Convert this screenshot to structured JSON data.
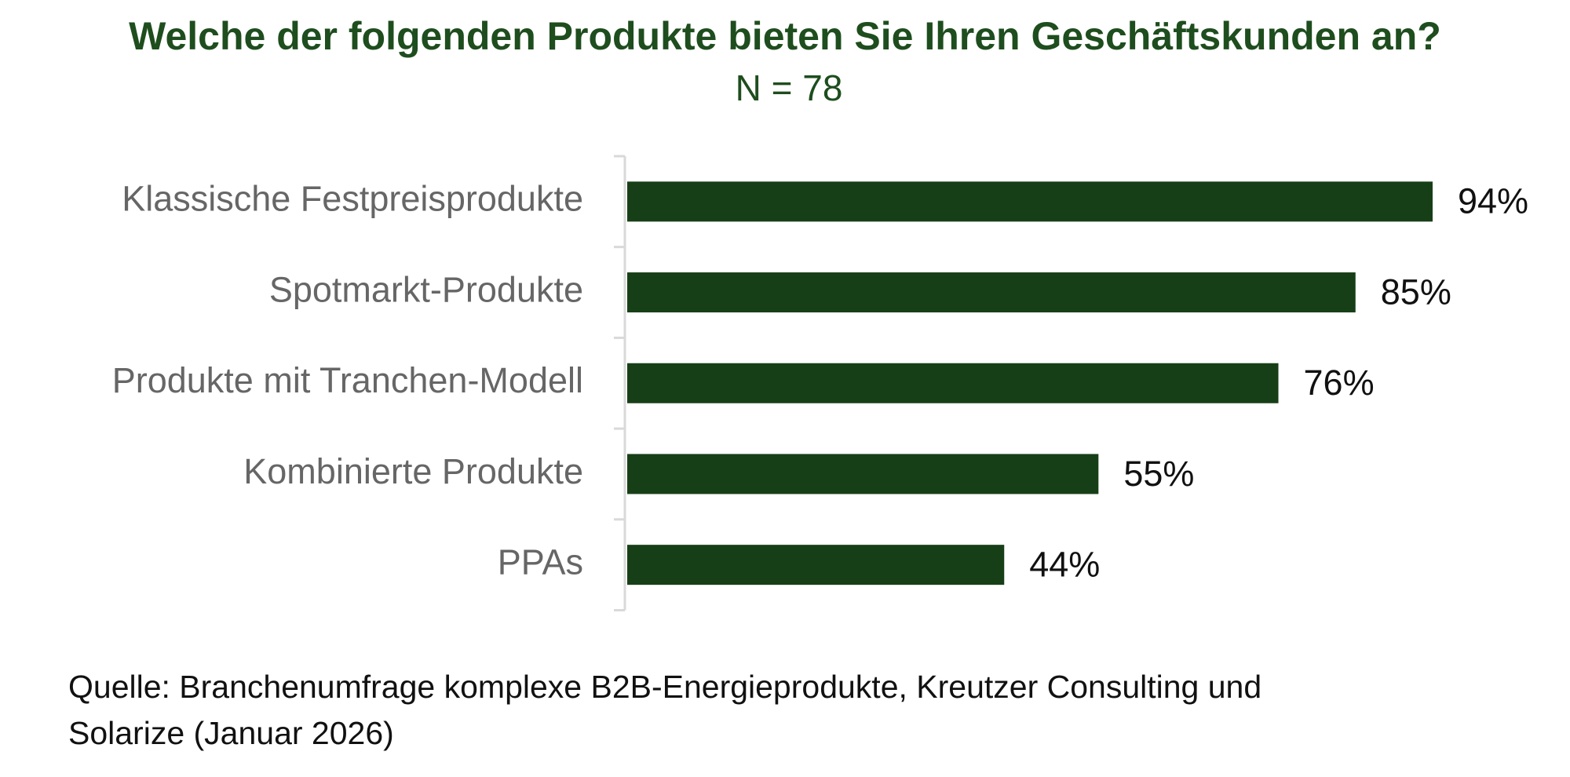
{
  "chart_data": {
    "type": "hbar",
    "title": "Welche der folgenden Produkte bieten Sie Ihren Geschäftskunden an?",
    "subtitle": "N = 78",
    "categories": [
      "Klassische Festpreisprodukte",
      "Spotmarkt-Produkte",
      "Produkte mit Tranchen-Modell",
      "Kombinierte Produkte",
      "PPAs"
    ],
    "values": [
      94,
      85,
      76,
      55,
      44
    ],
    "value_labels": [
      "94%",
      "85%",
      "76%",
      "55%",
      "44%"
    ],
    "color": "#173f17",
    "source": [
      "Quelle: Branchenumfrage komplexe B2B-Energieprodukte, Kreutzer Consulting und",
      "Solarize (Januar 2026)"
    ]
  }
}
